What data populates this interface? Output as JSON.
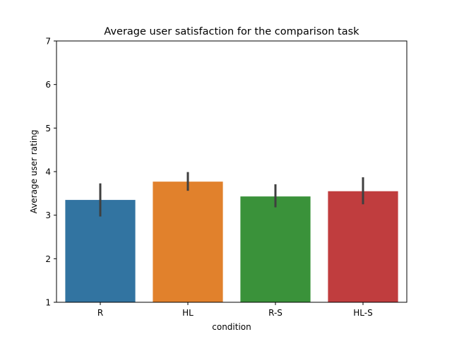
{
  "chart_data": {
    "type": "bar",
    "title": "Average user satisfaction for the comparison task",
    "xlabel": "condition",
    "ylabel": "Average user rating",
    "categories": [
      "R",
      "HL",
      "R-S",
      "HL-S"
    ],
    "values": [
      3.35,
      3.77,
      3.43,
      3.55
    ],
    "error_low": [
      2.97,
      3.56,
      3.18,
      3.25
    ],
    "error_high": [
      3.73,
      3.99,
      3.71,
      3.87
    ],
    "colors": [
      "#3274a1",
      "#e1812c",
      "#3a923a",
      "#c03d3e"
    ],
    "error_color": "#3f3f3f",
    "ylim": [
      1,
      7
    ],
    "yticks": [
      "1",
      "2",
      "3",
      "4",
      "5",
      "6",
      "7"
    ],
    "grid": false,
    "legend": "none"
  }
}
